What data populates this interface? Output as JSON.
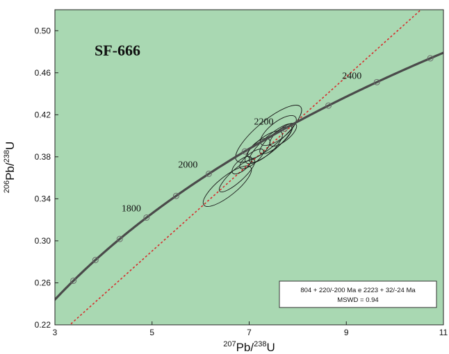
{
  "chart_data": {
    "type": "scatter",
    "title": "",
    "sample_label": "SF-666",
    "xlabel": {
      "sup": "207",
      "base": "Pb/",
      "sup2": "238",
      "base2": "U"
    },
    "ylabel": {
      "sup": "206",
      "base": "Pb/",
      "sup2": "238",
      "base2": "U"
    },
    "xlim": [
      3,
      11
    ],
    "ylim": [
      0.22,
      0.52
    ],
    "xticks": [
      3,
      5,
      7,
      9,
      11
    ],
    "yticks": [
      0.22,
      0.26,
      0.3,
      0.34,
      0.38,
      0.42,
      0.46,
      0.5
    ],
    "ytick_labels": [
      "0.22",
      "0.26",
      "0.30",
      "0.34",
      "0.38",
      "0.42",
      "0.46",
      "0.50"
    ],
    "grid": false,
    "background_color": "#a9d8b2",
    "concordia": {
      "color": "#4a4a4a",
      "age_markers_ma": [
        1500,
        1600,
        1700,
        1800,
        1900,
        2000,
        2100,
        2200,
        2300,
        2400,
        2500,
        2600
      ],
      "age_labels": [
        {
          "age": 1800,
          "text": "1800"
        },
        {
          "age": 2000,
          "text": "2000"
        },
        {
          "age": 2200,
          "text": "2200"
        },
        {
          "age": 2400,
          "text": "2400"
        }
      ]
    },
    "discordia": {
      "color": "#d62a2a",
      "style": "dashed",
      "lower_intercept_ma": 804,
      "upper_intercept_ma": 2223
    },
    "error_ellipses": [
      {
        "x": 6.55,
        "y": 0.352,
        "rx": 0.62,
        "ry": 0.009,
        "angle": -39
      },
      {
        "x": 6.75,
        "y": 0.362,
        "rx": 0.48,
        "ry": 0.006,
        "angle": -42
      },
      {
        "x": 6.85,
        "y": 0.372,
        "rx": 0.25,
        "ry": 0.005,
        "angle": -40
      },
      {
        "x": 7.05,
        "y": 0.378,
        "rx": 0.3,
        "ry": 0.005,
        "angle": -38
      },
      {
        "x": 7.3,
        "y": 0.389,
        "rx": 0.48,
        "ry": 0.008,
        "angle": -40
      },
      {
        "x": 7.45,
        "y": 0.393,
        "rx": 0.58,
        "ry": 0.007,
        "angle": -41
      },
      {
        "x": 7.55,
        "y": 0.396,
        "rx": 0.42,
        "ry": 0.006,
        "angle": -40
      },
      {
        "x": 7.7,
        "y": 0.401,
        "rx": 0.34,
        "ry": 0.006,
        "angle": -39
      },
      {
        "x": 7.2,
        "y": 0.388,
        "rx": 0.28,
        "ry": 0.006,
        "angle": -40
      },
      {
        "x": 7.4,
        "y": 0.402,
        "rx": 0.86,
        "ry": 0.012,
        "angle": -40
      },
      {
        "x": 7.6,
        "y": 0.405,
        "rx": 0.45,
        "ry": 0.008,
        "angle": -38
      }
    ],
    "result_box": {
      "line1": "804 + 220/-200 Ma e 2223 + 32/-24 Ma",
      "line2": "MSWD = 0.94"
    }
  }
}
